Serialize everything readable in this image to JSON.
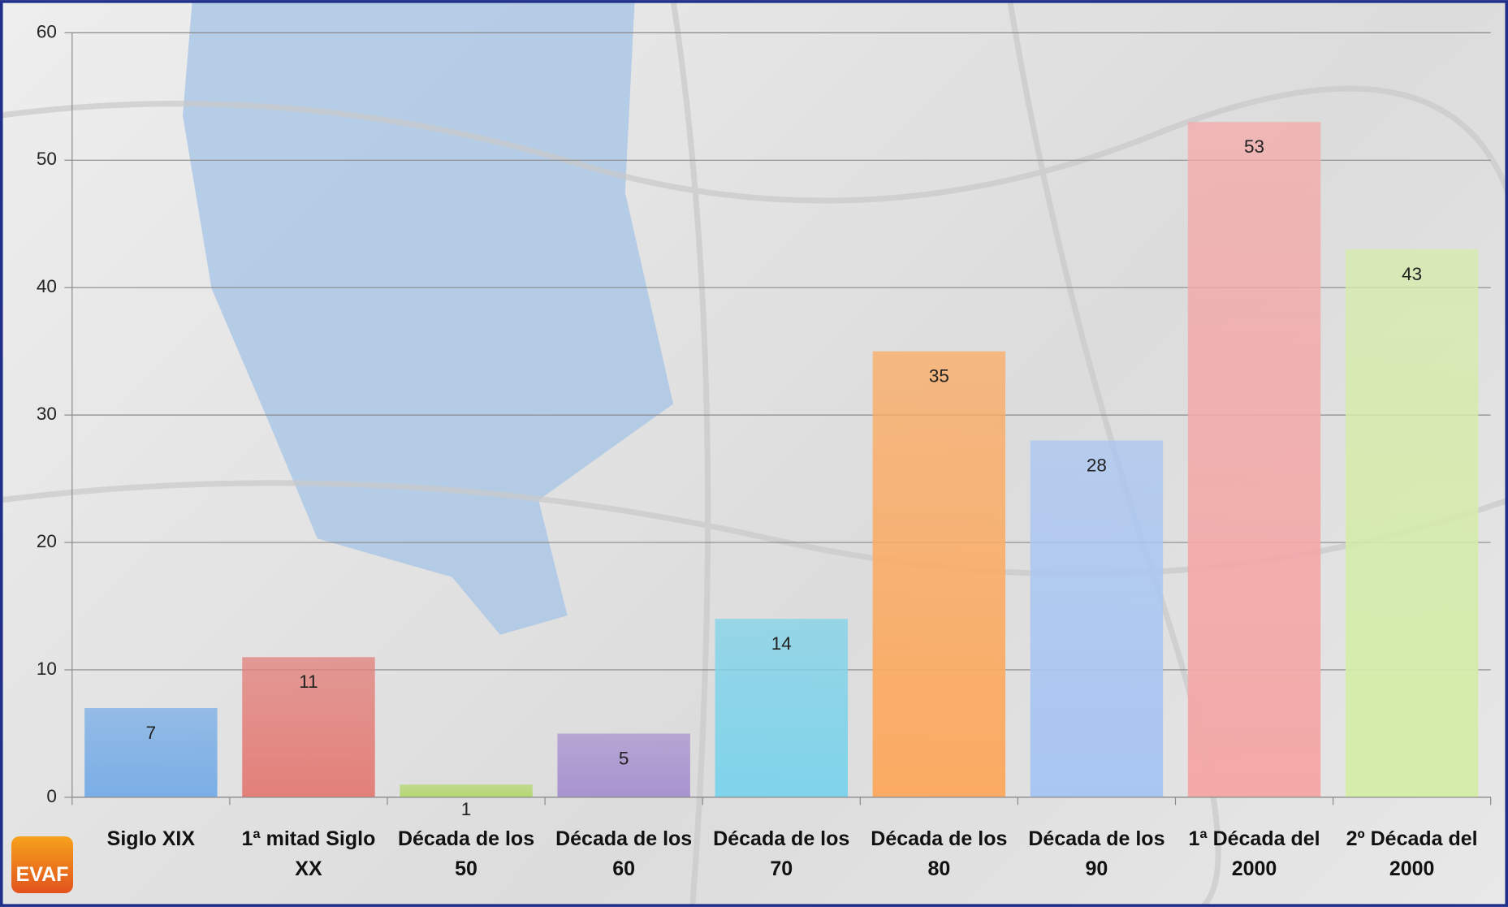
{
  "chart_data": {
    "type": "bar",
    "categories": [
      "Siglo XIX",
      "1ª mitad Siglo XX",
      "Década de los 50",
      "Década de los 60",
      "Década de los 70",
      "Década de los 80",
      "Década de los 90",
      "1ª Década del 2000",
      "2º Década del 2000"
    ],
    "values": [
      7,
      11,
      1,
      5,
      14,
      35,
      28,
      53,
      43
    ],
    "colors": [
      "#7aaee6",
      "#e3807a",
      "#b5d873",
      "#a893cf",
      "#7fd3ea",
      "#fbab63",
      "#a9c6f2",
      "#f3a9a8",
      "#d5ecaa"
    ],
    "ylim": [
      0,
      60
    ],
    "yticks": [
      0,
      10,
      20,
      30,
      40,
      50,
      60
    ],
    "grid": true,
    "logo": "EVAF"
  }
}
